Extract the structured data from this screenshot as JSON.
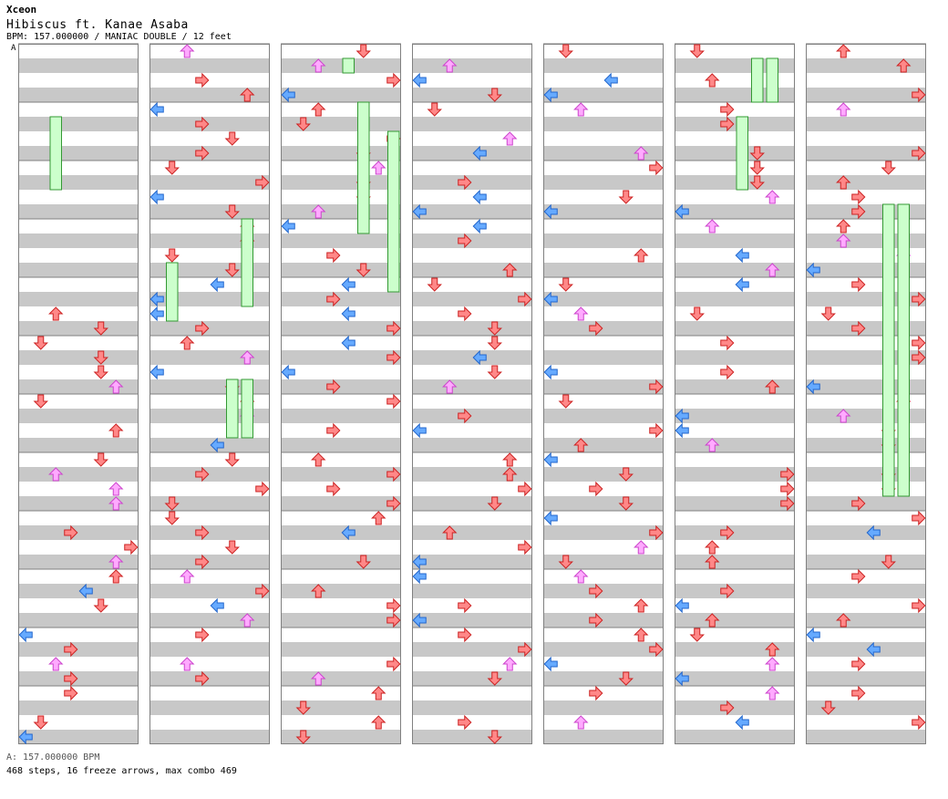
{
  "header": {
    "artist": "Xceon",
    "song": "Hibiscus ft. Kanae Asaba",
    "info": "BPM: 157.000000 / MANIAC DOUBLE / 12 feet",
    "bpm_marker": "A"
  },
  "footer": {
    "bpm_legend": "A: 157.000000 BPM",
    "stats": "468 steps, 16 freeze arrows, max combo 469"
  },
  "colors": {
    "stripe": "#c8c8c8",
    "border": "#808080",
    "measure_line": "#808080",
    "arrow_left": "#66aaff",
    "arrow_down": "#ff8888",
    "arrow_up": "#ffaaff",
    "freeze": "#ccffcc"
  },
  "chart_data": {
    "type": "step-chart",
    "columns": 7,
    "measures_per_column": 12,
    "lanes_per_measure": 8,
    "freeze_arrows": 16,
    "steps": 468,
    "max_combo": 469
  }
}
